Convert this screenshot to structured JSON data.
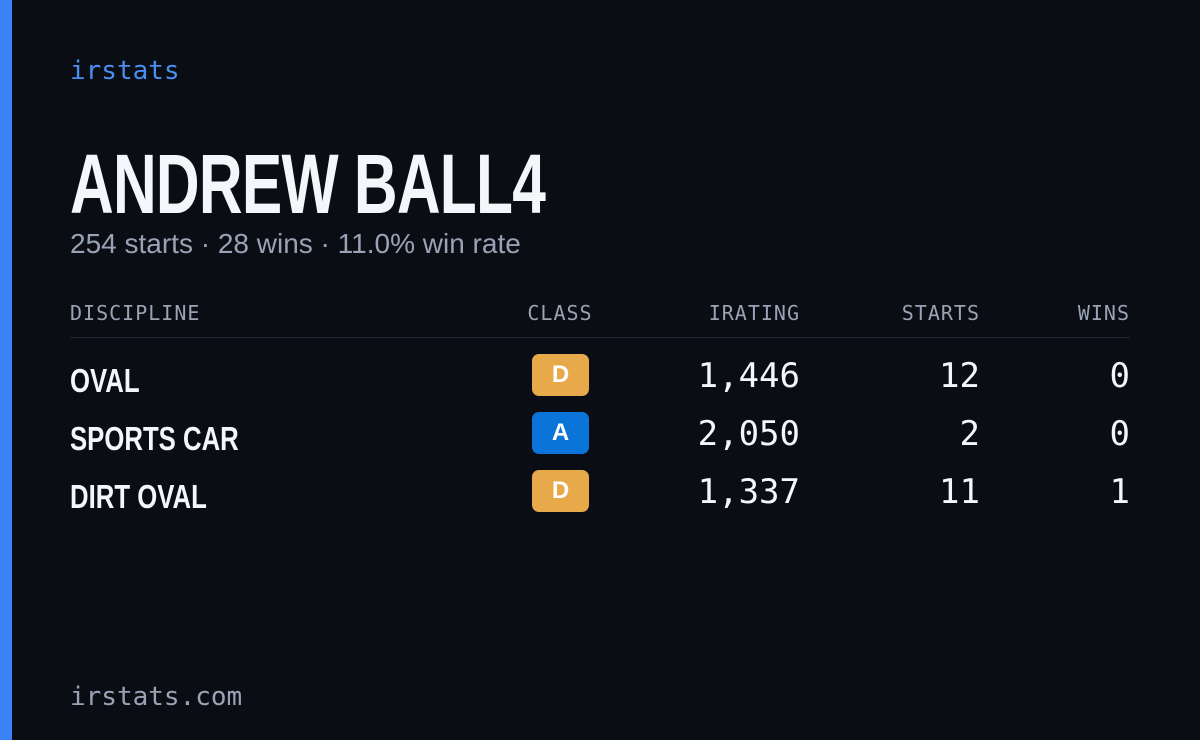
{
  "brand": "irstats",
  "header": {
    "name": "ANDREW BALL4",
    "summary": "254 starts · 28 wins · 11.0% win rate"
  },
  "table": {
    "columns": [
      "DISCIPLINE",
      "CLASS",
      "IRATING",
      "STARTS",
      "WINS"
    ],
    "rows": [
      {
        "discipline": "OVAL",
        "class": "D",
        "class_color": "#e8a94a",
        "irating": "1,446",
        "starts": "12",
        "wins": "0"
      },
      {
        "discipline": "SPORTS CAR",
        "class": "A",
        "class_color": "#0a74d9",
        "irating": "2,050",
        "starts": "2",
        "wins": "0"
      },
      {
        "discipline": "DIRT OVAL",
        "class": "D",
        "class_color": "#e8a94a",
        "irating": "1,337",
        "starts": "11",
        "wins": "1"
      }
    ]
  },
  "footer": {
    "url": "irstats.com"
  }
}
